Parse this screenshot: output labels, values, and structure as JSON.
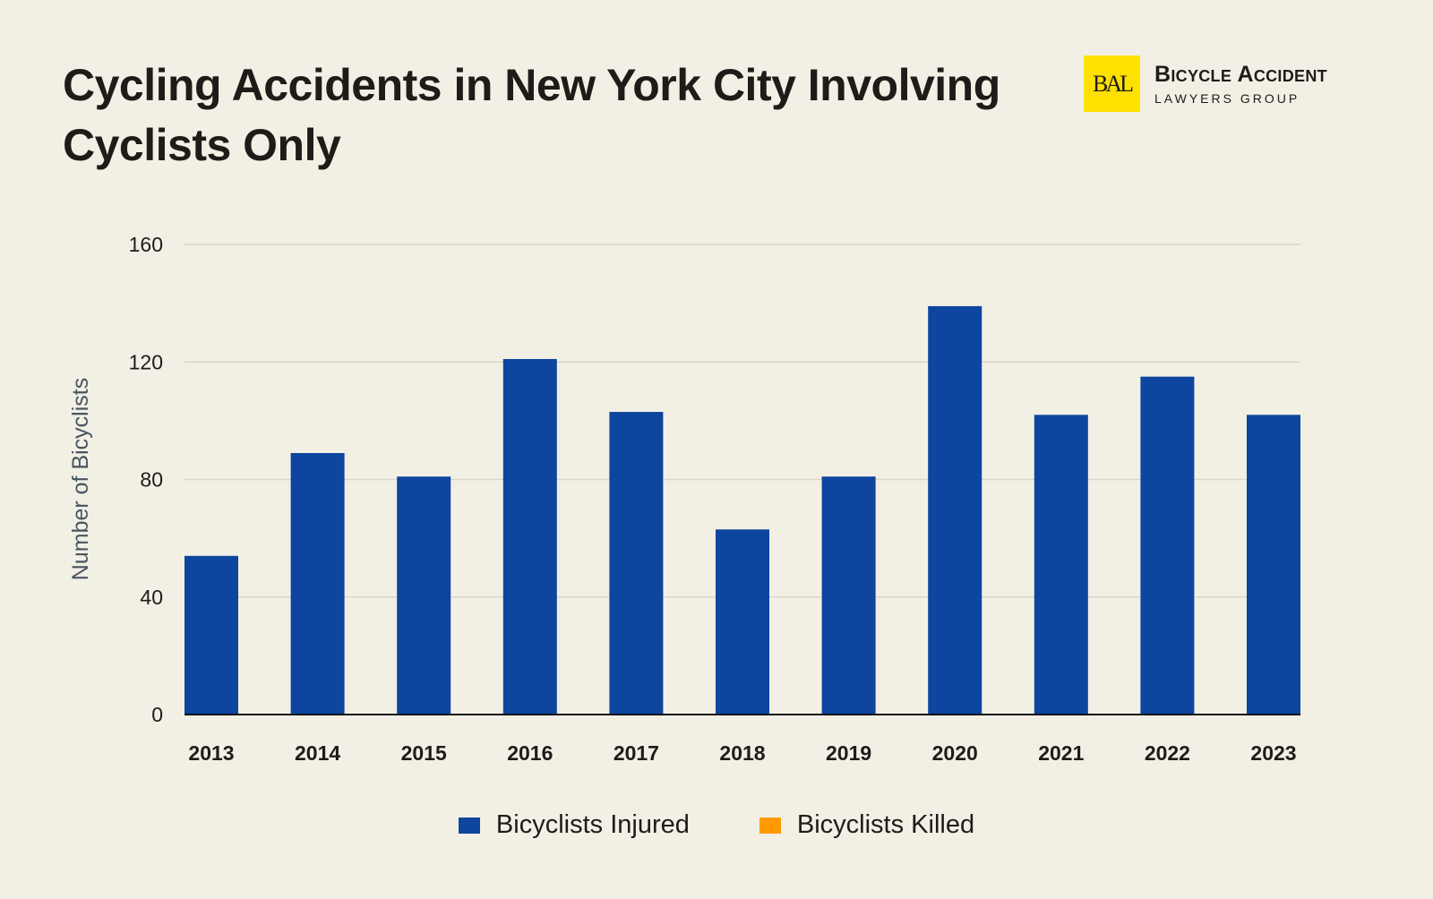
{
  "brand": {
    "line1": "Bicycle Accident",
    "line2": "Lawyers Group",
    "mark": "BAL",
    "color": "#ffe100"
  },
  "chart_data": {
    "type": "bar",
    "title": "Cycling Accidents in New York City Involving Cyclists Only",
    "xlabel": "",
    "ylabel": "Number of Bicyclists",
    "ylim": [
      0,
      160
    ],
    "yticks": [
      0,
      40,
      80,
      120,
      160
    ],
    "grid": true,
    "legend": "bottom",
    "categories": [
      "2013",
      "2014",
      "2015",
      "2016",
      "2017",
      "2018",
      "2019",
      "2020",
      "2021",
      "2022",
      "2023"
    ],
    "series": [
      {
        "name": "Bicyclists Injured",
        "color": "#0d459f",
        "values": [
          54,
          89,
          81,
          121,
          103,
          63,
          81,
          139,
          102,
          115,
          102
        ]
      },
      {
        "name": "Bicyclists Killed",
        "color": "#ff9a00",
        "values": [
          0,
          0,
          0,
          0,
          0,
          0,
          0,
          0,
          0,
          0,
          0
        ]
      }
    ]
  }
}
